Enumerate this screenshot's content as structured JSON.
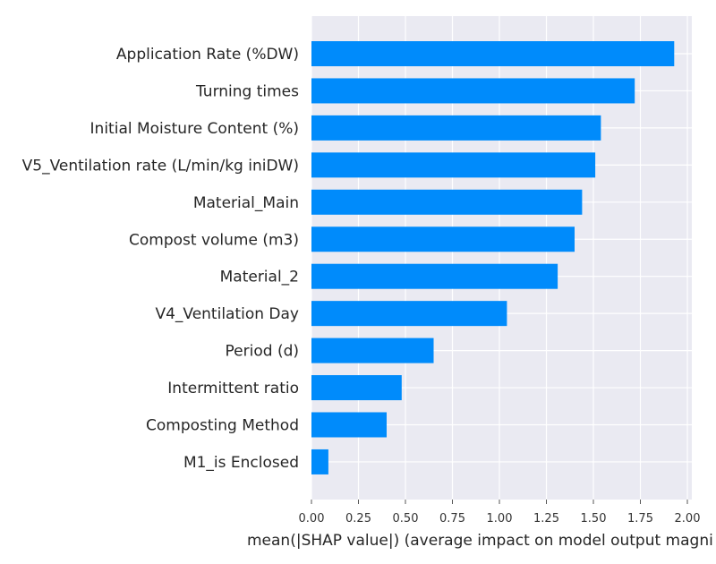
{
  "chart_data": {
    "type": "bar",
    "orientation": "horizontal",
    "title": "",
    "xlabel": "mean(|SHAP value|) (average impact on model output magni",
    "ylabel": "",
    "xlim": [
      0,
      2.02
    ],
    "xticks": [
      "0.00",
      "0.25",
      "0.50",
      "0.75",
      "1.00",
      "1.25",
      "1.50",
      "1.75",
      "2.00"
    ],
    "xtick_values": [
      0,
      0.25,
      0.5,
      0.75,
      1.0,
      1.25,
      1.5,
      1.75,
      2.0
    ],
    "grid": true,
    "legend": "none",
    "bar_color": "#008bfb",
    "background_color": "#eaeaf2",
    "categories": [
      "Application Rate (%DW)",
      "Turning times",
      "Initial Moisture Content (%)",
      "V5_Ventilation rate (L/min/kg iniDW)",
      "Material_Main",
      "Compost volume (m3)",
      "Material_2",
      "V4_Ventilation Day",
      "Period (d)",
      "Intermittent ratio",
      "Composting Method",
      "M1_is Enclosed"
    ],
    "values": [
      1.93,
      1.72,
      1.54,
      1.51,
      1.44,
      1.4,
      1.31,
      1.04,
      0.65,
      0.48,
      0.4,
      0.09
    ]
  }
}
